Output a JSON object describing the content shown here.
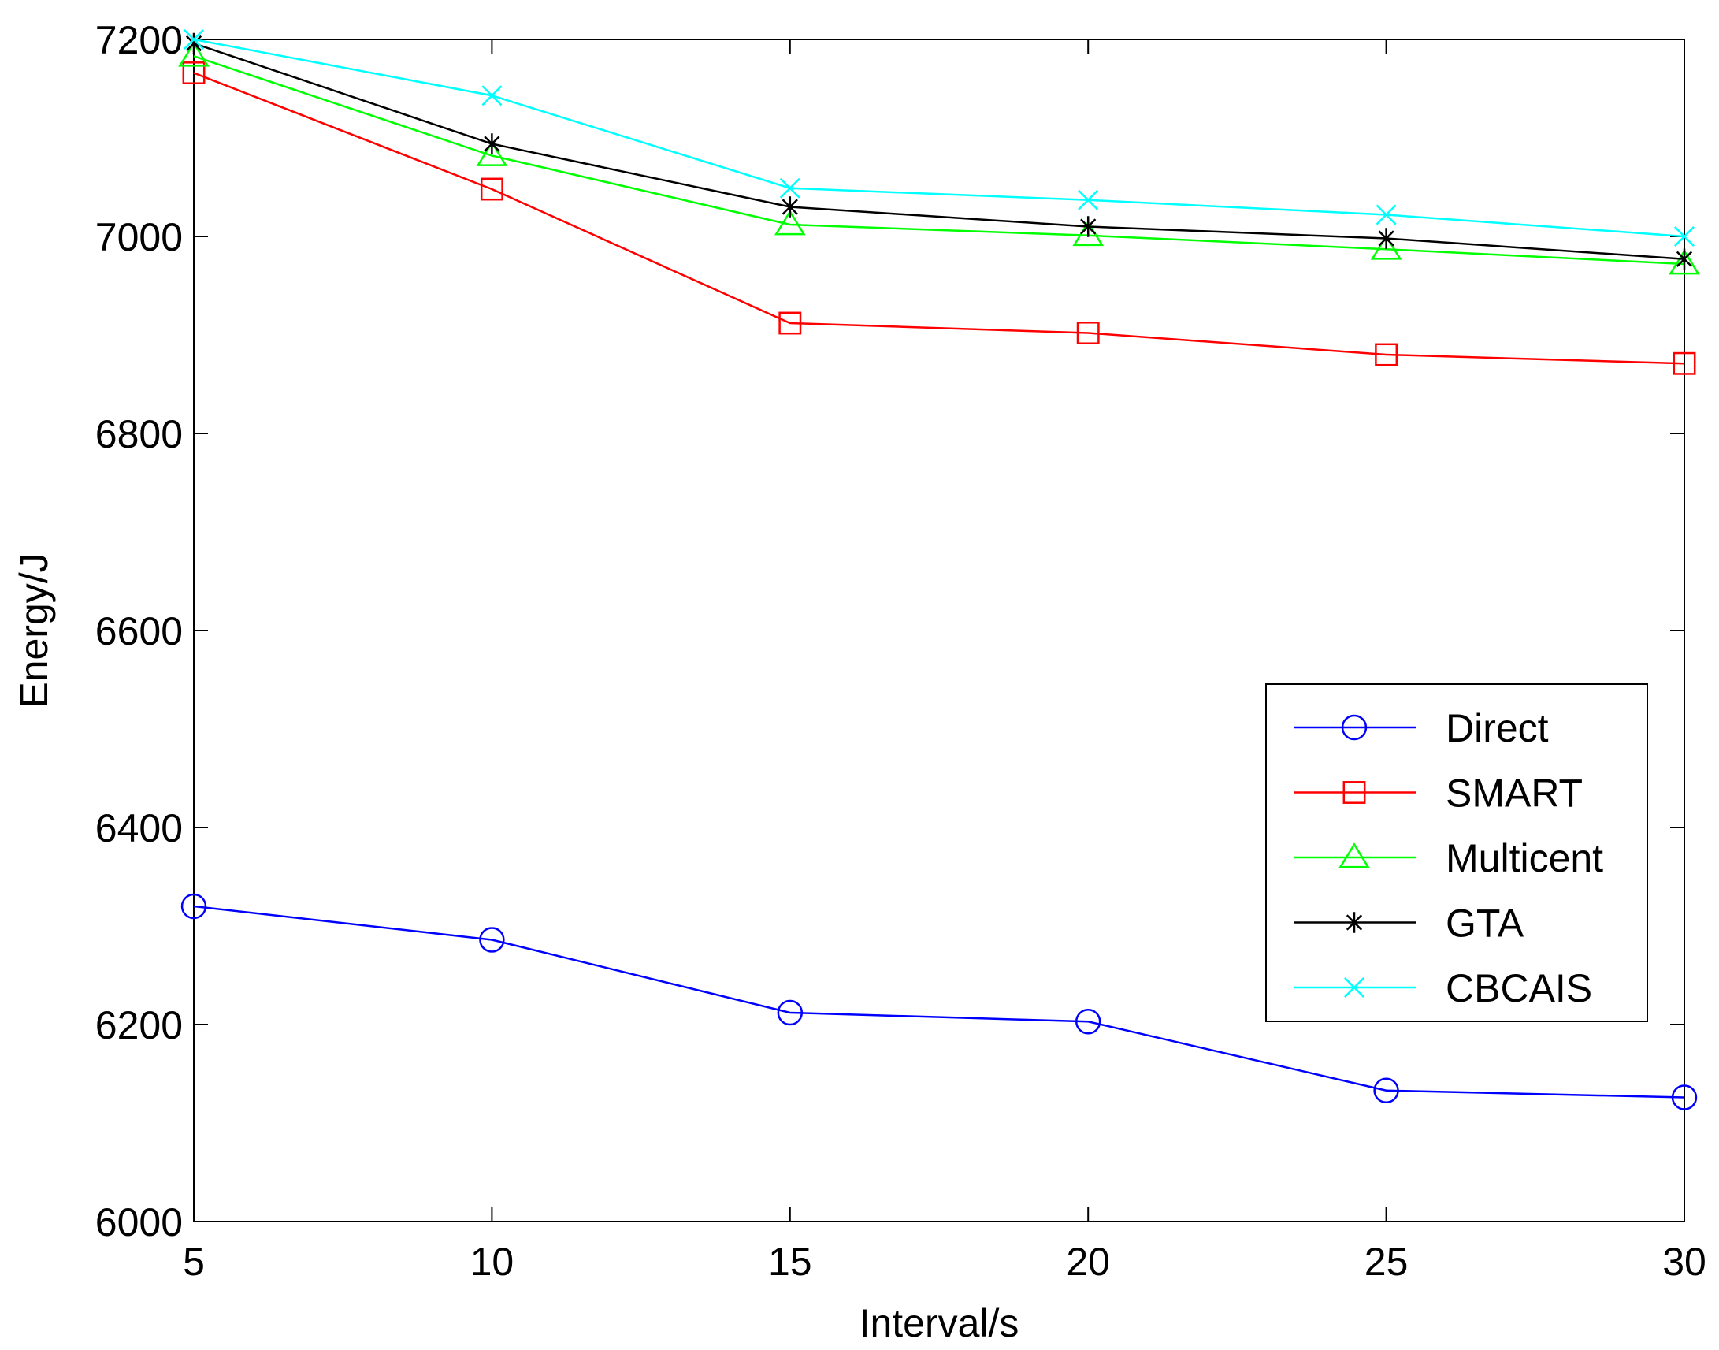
{
  "chart_data": {
    "type": "line",
    "title": "",
    "xlabel": "Interval/s",
    "ylabel": "Energy/J",
    "xlim": [
      5,
      30
    ],
    "ylim": [
      6000,
      7200
    ],
    "xticks": [
      5,
      10,
      15,
      20,
      25,
      30
    ],
    "yticks": [
      6000,
      6200,
      6400,
      6600,
      6800,
      7000,
      7200
    ],
    "grid": false,
    "legend_position": "center-right",
    "x": [
      5,
      10,
      15,
      20,
      25,
      30
    ],
    "series": [
      {
        "name": "Direct",
        "color": "#0000ff",
        "marker": "circle",
        "values": [
          6320,
          6286,
          6212,
          6203,
          6133,
          6126
        ]
      },
      {
        "name": "SMART",
        "color": "#ff0000",
        "marker": "square",
        "values": [
          7166,
          7048,
          6912,
          6902,
          6880,
          6871
        ]
      },
      {
        "name": "Multicent",
        "color": "#00ff00",
        "marker": "triangle",
        "values": [
          7183,
          7082,
          7012,
          7001,
          6987,
          6972
        ]
      },
      {
        "name": "GTA",
        "color": "#000000",
        "marker": "star",
        "values": [
          7196,
          7094,
          7030,
          7010,
          6998,
          6977
        ]
      },
      {
        "name": "CBCAIS",
        "color": "#00ffff",
        "marker": "x",
        "values": [
          7200,
          7143,
          7049,
          7037,
          7022,
          7000
        ]
      }
    ]
  }
}
